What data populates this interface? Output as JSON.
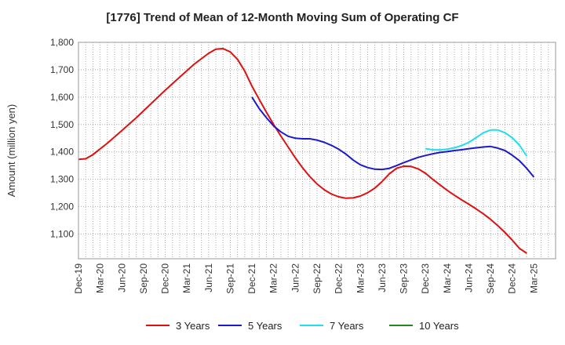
{
  "chart_data": {
    "type": "line",
    "title": "[1776]  Trend of Mean of 12-Month Moving Sum of Operating CF",
    "xlabel": "",
    "ylabel": "Amount (million yen)",
    "ylim": [
      1010,
      1800
    ],
    "yticks": [
      1100,
      1200,
      1300,
      1400,
      1500,
      1600,
      1700,
      1800
    ],
    "ytick_labels": [
      "1,100",
      "1,200",
      "1,300",
      "1,400",
      "1,500",
      "1,600",
      "1,700",
      "1,800"
    ],
    "x_start": "Dec-19",
    "x_months_total": 66,
    "xtick_labels": [
      "Dec-19",
      "Mar-20",
      "Jun-20",
      "Sep-20",
      "Dec-20",
      "Mar-21",
      "Jun-21",
      "Sep-21",
      "Dec-21",
      "Mar-22",
      "Jun-22",
      "Sep-22",
      "Dec-22",
      "Mar-23",
      "Jun-23",
      "Sep-23",
      "Dec-23",
      "Mar-24",
      "Jun-24",
      "Sep-24",
      "Dec-24",
      "Mar-25"
    ],
    "grid": true,
    "legend_position": "bottom",
    "series": [
      {
        "name": "3 Years",
        "color": "#dd1111",
        "points": [
          [
            0,
            1373
          ],
          [
            1,
            1375
          ],
          [
            2,
            1390
          ],
          [
            4,
            1432
          ],
          [
            6,
            1478
          ],
          [
            8,
            1525
          ],
          [
            10,
            1575
          ],
          [
            12,
            1625
          ],
          [
            14,
            1673
          ],
          [
            16,
            1720
          ],
          [
            18,
            1760
          ],
          [
            19,
            1775
          ],
          [
            20,
            1777
          ],
          [
            21,
            1765
          ],
          [
            22,
            1738
          ],
          [
            23,
            1695
          ],
          [
            24,
            1640
          ],
          [
            25,
            1592
          ],
          [
            26,
            1545
          ],
          [
            27,
            1500
          ],
          [
            28,
            1458
          ],
          [
            29,
            1418
          ],
          [
            30,
            1378
          ],
          [
            31,
            1342
          ],
          [
            32,
            1310
          ],
          [
            33,
            1283
          ],
          [
            34,
            1262
          ],
          [
            35,
            1246
          ],
          [
            36,
            1236
          ],
          [
            37,
            1231
          ],
          [
            38,
            1232
          ],
          [
            39,
            1239
          ],
          [
            40,
            1251
          ],
          [
            41,
            1268
          ],
          [
            42,
            1292
          ],
          [
            43,
            1320
          ],
          [
            44,
            1340
          ],
          [
            45,
            1348
          ],
          [
            46,
            1347
          ],
          [
            47,
            1338
          ],
          [
            48,
            1322
          ],
          [
            49,
            1300
          ],
          [
            50,
            1280
          ],
          [
            51,
            1260
          ],
          [
            52,
            1242
          ],
          [
            53,
            1225
          ],
          [
            54,
            1209
          ],
          [
            55,
            1192
          ],
          [
            56,
            1174
          ],
          [
            57,
            1154
          ],
          [
            58,
            1131
          ],
          [
            59,
            1106
          ],
          [
            60,
            1078
          ],
          [
            61,
            1048
          ],
          [
            62,
            1030
          ]
        ]
      },
      {
        "name": "5 Years",
        "color": "#1a1acc",
        "points": [
          [
            24,
            1600
          ],
          [
            25,
            1558
          ],
          [
            26,
            1525
          ],
          [
            27,
            1495
          ],
          [
            28,
            1473
          ],
          [
            29,
            1457
          ],
          [
            30,
            1450
          ],
          [
            31,
            1448
          ],
          [
            32,
            1448
          ],
          [
            33,
            1443
          ],
          [
            34,
            1435
          ],
          [
            35,
            1424
          ],
          [
            36,
            1410
          ],
          [
            37,
            1392
          ],
          [
            38,
            1370
          ],
          [
            39,
            1353
          ],
          [
            40,
            1343
          ],
          [
            41,
            1337
          ],
          [
            42,
            1336
          ],
          [
            43,
            1340
          ],
          [
            44,
            1350
          ],
          [
            45,
            1361
          ],
          [
            46,
            1371
          ],
          [
            47,
            1380
          ],
          [
            48,
            1387
          ],
          [
            49,
            1393
          ],
          [
            50,
            1398
          ],
          [
            51,
            1401
          ],
          [
            52,
            1405
          ],
          [
            53,
            1408
          ],
          [
            54,
            1412
          ],
          [
            55,
            1415
          ],
          [
            56,
            1418
          ],
          [
            57,
            1420
          ],
          [
            58,
            1414
          ],
          [
            59,
            1405
          ],
          [
            60,
            1388
          ],
          [
            61,
            1368
          ],
          [
            62,
            1340
          ],
          [
            63,
            1308
          ]
        ]
      },
      {
        "name": "7 Years",
        "color": "#22ddee",
        "points": [
          [
            48,
            1412
          ],
          [
            49,
            1408
          ],
          [
            50,
            1407
          ],
          [
            51,
            1410
          ],
          [
            52,
            1415
          ],
          [
            53,
            1423
          ],
          [
            54,
            1435
          ],
          [
            55,
            1452
          ],
          [
            56,
            1470
          ],
          [
            57,
            1480
          ],
          [
            58,
            1480
          ],
          [
            59,
            1470
          ],
          [
            60,
            1452
          ],
          [
            61,
            1425
          ],
          [
            62,
            1385
          ]
        ]
      },
      {
        "name": "10 Years",
        "color": "#228822",
        "points": []
      }
    ]
  }
}
